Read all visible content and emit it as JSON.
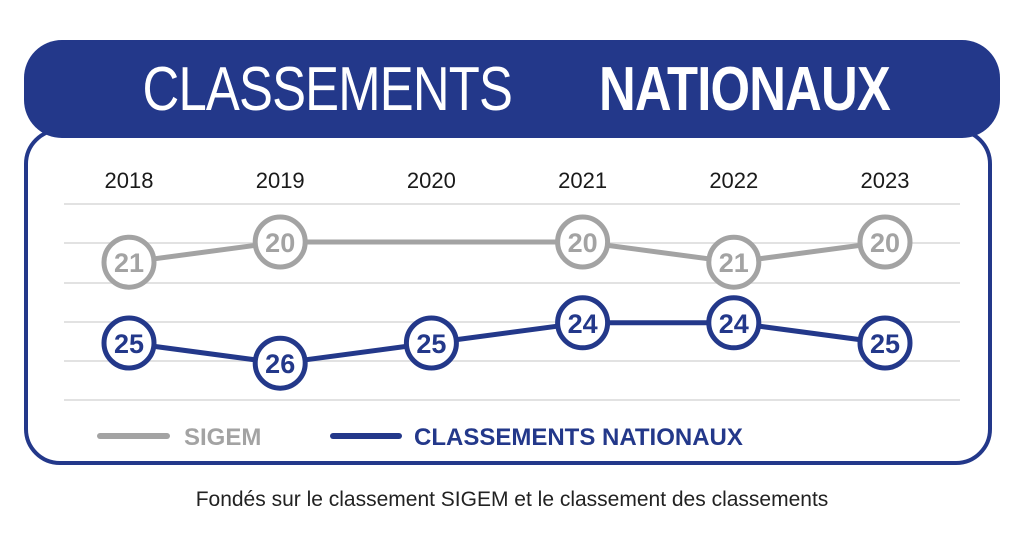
{
  "title": {
    "part1": "CLASSEMENTS",
    "part2": "NATIONAUX"
  },
  "footnote": "Fondés sur le classement SIGEM et le classement des classements",
  "legend": {
    "sigem": "SIGEM",
    "nationaux": "CLASSEMENTS NATIONAUX"
  },
  "colors": {
    "sigem": "#a3a3a3",
    "nationaux": "#23388a",
    "grid": "#d9d9d9"
  },
  "chart_data": {
    "type": "line",
    "categories": [
      "2018",
      "2019",
      "2020",
      "2021",
      "2022",
      "2023"
    ],
    "series": [
      {
        "name": "SIGEM",
        "key": "sigem",
        "values": [
          21,
          20,
          null,
          20,
          21,
          20
        ],
        "labels": [
          "21",
          "20",
          "",
          "20",
          "21",
          "20"
        ]
      },
      {
        "name": "CLASSEMENTS NATIONAUX",
        "key": "nationaux",
        "values": [
          25,
          26,
          25,
          24,
          24,
          25
        ],
        "labels": [
          "25",
          "26",
          "25",
          "24",
          "24",
          "25"
        ]
      }
    ],
    "grid": true,
    "legend_position": "bottom"
  }
}
